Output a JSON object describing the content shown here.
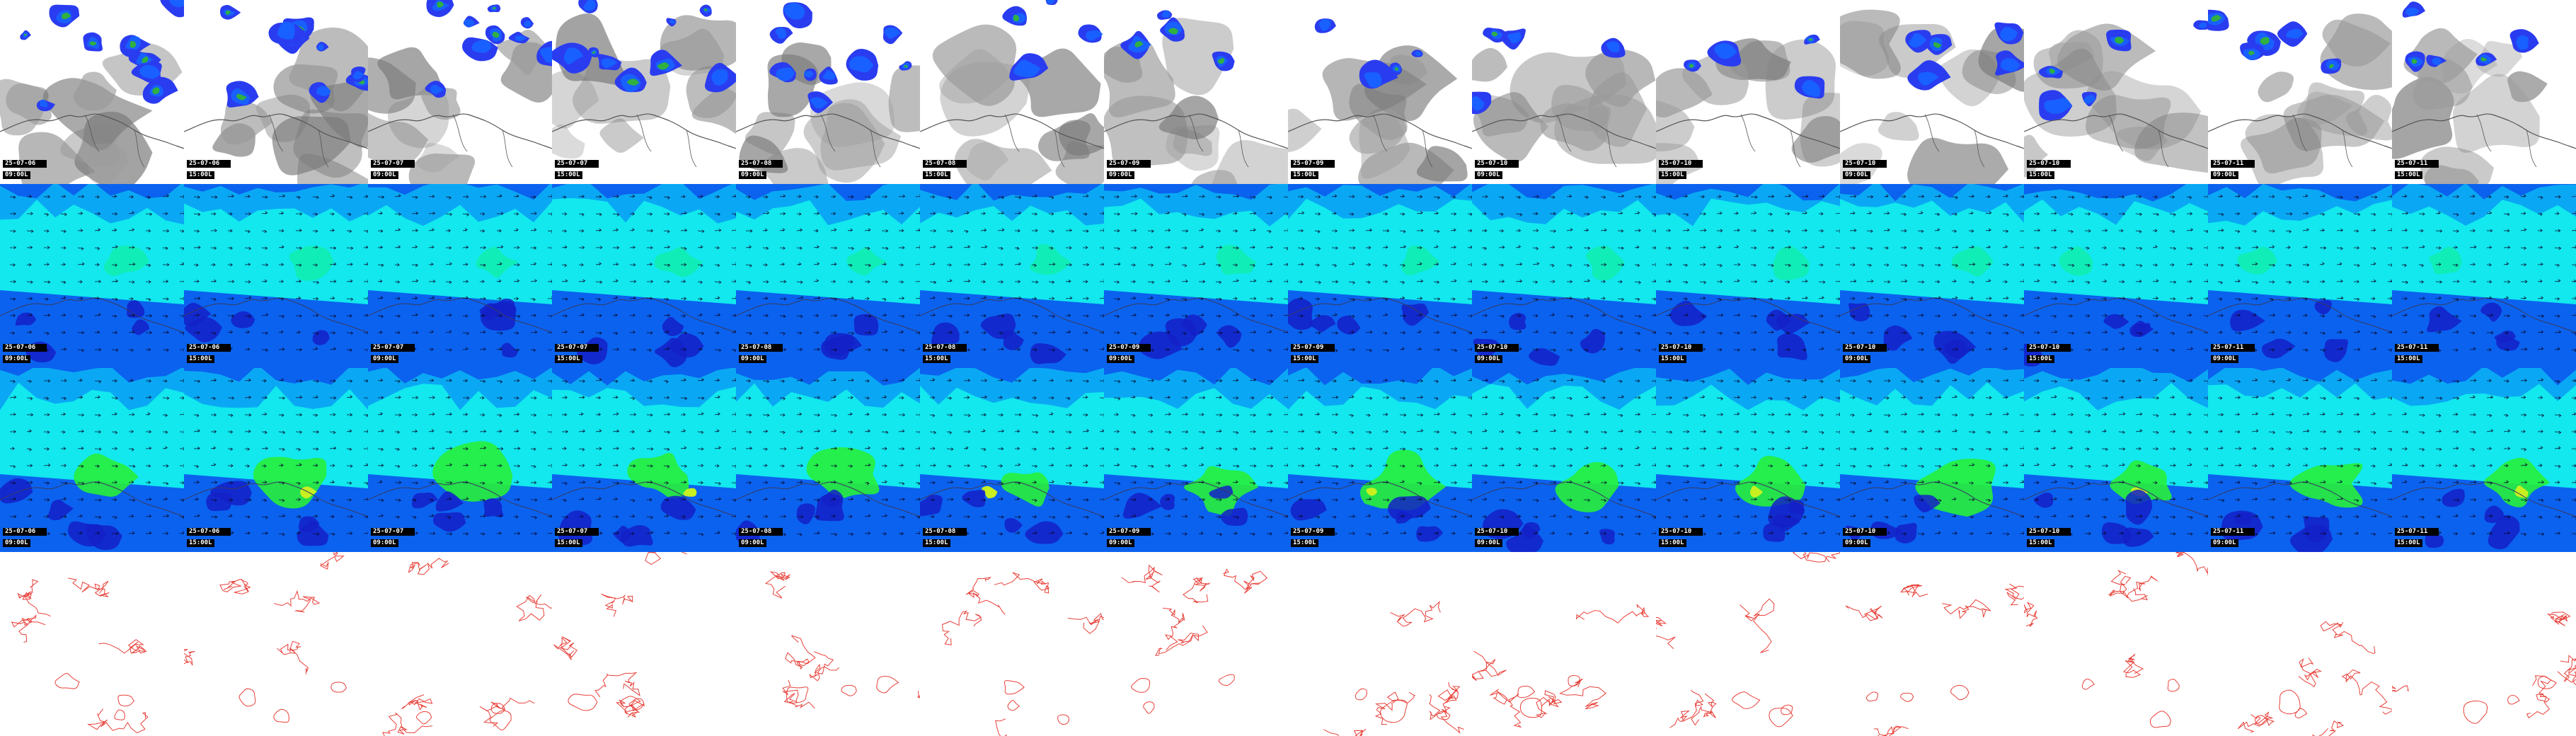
{
  "layers": [
    {
      "name": "cloud-precip",
      "colors": {
        "bg": "#ffffff",
        "cloud": "#9a9a9a",
        "cloud_dark": "#7a7a7a",
        "precip_outer": "#2a3cf0",
        "precip_mid": "#1860ff",
        "precip_inner": "#30b040",
        "coast": "#555555"
      }
    },
    {
      "name": "wind-field-low",
      "colors": {
        "dark": "#1420c8",
        "mid": "#0b62ee",
        "light": "#0aa8f4",
        "cyan": "#12e8ee",
        "green": "#10f0a0",
        "arrow": "#0a0a30",
        "coast": "#3a3a60"
      }
    },
    {
      "name": "wind-field-high",
      "colors": {
        "dark": "#1420c8",
        "mid": "#0b62ee",
        "light": "#0aa8f4",
        "cyan": "#12e8ee",
        "green": "#27f03a",
        "yellow": "#c8f020",
        "arrow": "#0a0a30",
        "coast": "#3a3a60"
      }
    },
    {
      "name": "contour",
      "colors": {
        "bg": "#ffffff",
        "line": "#e8413a"
      }
    }
  ],
  "frames": [
    {
      "date": "25-07-06",
      "time": "09:00L"
    },
    {
      "date": "25-07-06",
      "time": "15:00L"
    },
    {
      "date": "25-07-07",
      "time": "09:00L"
    },
    {
      "date": "25-07-07",
      "time": "15:00L"
    },
    {
      "date": "25-07-08",
      "time": "09:00L"
    },
    {
      "date": "25-07-08",
      "time": "15:00L"
    },
    {
      "date": "25-07-09",
      "time": "09:00L"
    },
    {
      "date": "25-07-09",
      "time": "15:00L"
    },
    {
      "date": "25-07-10",
      "time": "09:00L"
    },
    {
      "date": "25-07-10",
      "time": "15:00L"
    },
    {
      "date": "25-07-10",
      "time": "09:00L"
    },
    {
      "date": "25-07-10",
      "time": "15:00L"
    },
    {
      "date": "25-07-11",
      "time": "09:00L"
    },
    {
      "date": "25-07-11",
      "time": "15:00L"
    }
  ]
}
